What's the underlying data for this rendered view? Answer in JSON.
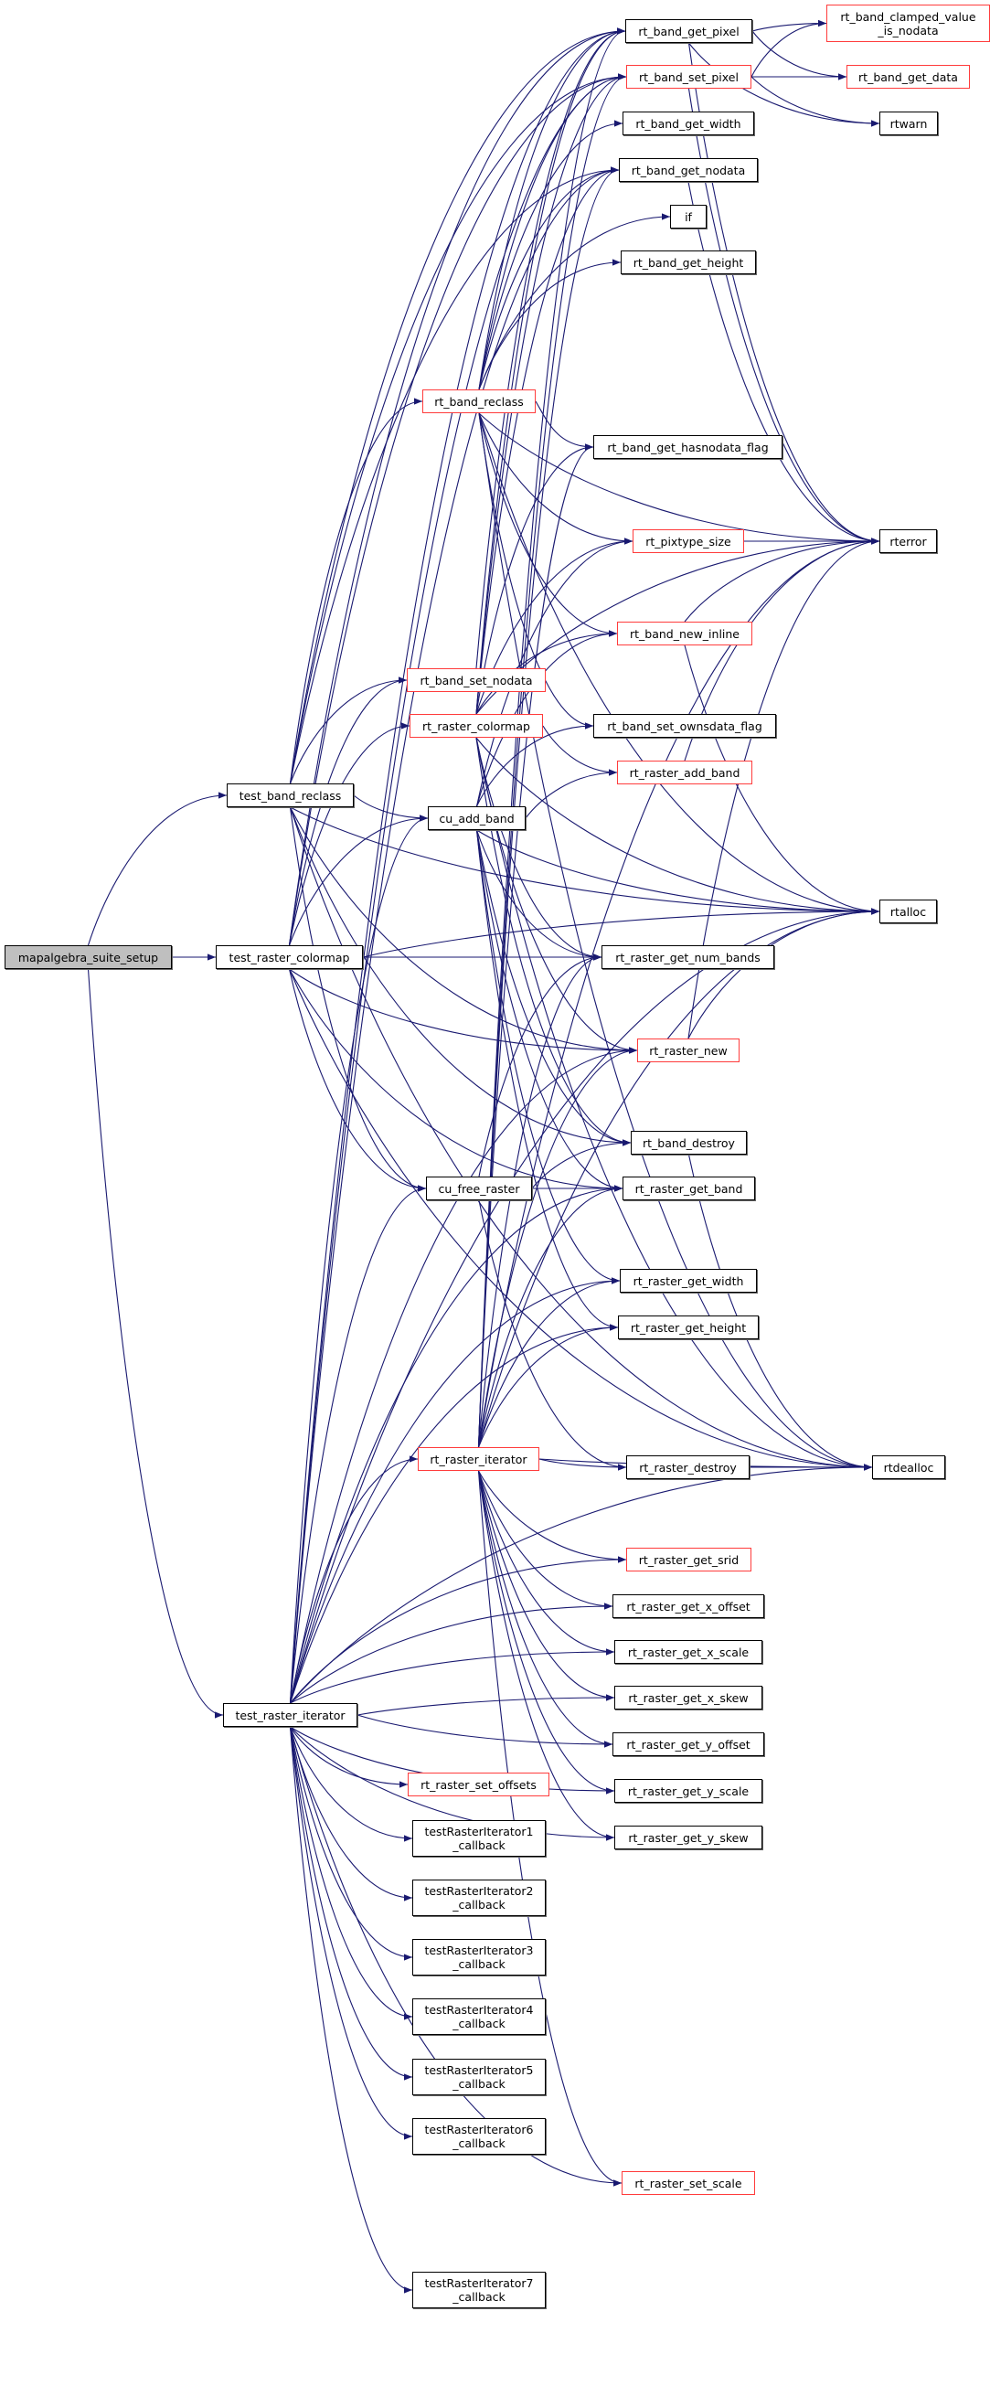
{
  "colors": {
    "edge": "#191970",
    "incomplete_border": "#ff3c3c",
    "normal_border": "#000000",
    "root_fill": "#bfbfbf"
  },
  "nodes": [
    {
      "id": "mapalgebra_suite_setup",
      "lines": [
        "mapalgebra_suite_setup"
      ],
      "style": "root"
    },
    {
      "id": "test_band_reclass",
      "lines": [
        "test_band_reclass"
      ],
      "style": "normal"
    },
    {
      "id": "test_raster_colormap",
      "lines": [
        "test_raster_colormap"
      ],
      "style": "normal"
    },
    {
      "id": "test_raster_iterator",
      "lines": [
        "test_raster_iterator"
      ],
      "style": "normal"
    },
    {
      "id": "rt_band_get_pixel",
      "lines": [
        "rt_band_get_pixel"
      ],
      "style": "normal"
    },
    {
      "id": "rt_band_clamped_value_is_nodata",
      "lines": [
        "rt_band_clamped_value",
        "_is_nodata"
      ],
      "style": "red"
    },
    {
      "id": "rt_band_set_pixel",
      "lines": [
        "rt_band_set_pixel"
      ],
      "style": "red"
    },
    {
      "id": "rt_band_get_data",
      "lines": [
        "rt_band_get_data"
      ],
      "style": "red"
    },
    {
      "id": "rt_band_get_width",
      "lines": [
        "rt_band_get_width"
      ],
      "style": "normal"
    },
    {
      "id": "rtwarn",
      "lines": [
        "rtwarn"
      ],
      "style": "normal"
    },
    {
      "id": "rt_band_get_nodata",
      "lines": [
        "rt_band_get_nodata"
      ],
      "style": "normal"
    },
    {
      "id": "if",
      "lines": [
        "if"
      ],
      "style": "normal"
    },
    {
      "id": "rt_band_get_height",
      "lines": [
        "rt_band_get_height"
      ],
      "style": "normal"
    },
    {
      "id": "rt_band_reclass",
      "lines": [
        "rt_band_reclass"
      ],
      "style": "red"
    },
    {
      "id": "rt_band_get_hasnodata_flag",
      "lines": [
        "rt_band_get_hasnodata_flag"
      ],
      "style": "normal"
    },
    {
      "id": "rt_pixtype_size",
      "lines": [
        "rt_pixtype_size"
      ],
      "style": "red"
    },
    {
      "id": "rterror",
      "lines": [
        "rterror"
      ],
      "style": "normal"
    },
    {
      "id": "rt_band_new_inline",
      "lines": [
        "rt_band_new_inline"
      ],
      "style": "red"
    },
    {
      "id": "rt_band_set_nodata",
      "lines": [
        "rt_band_set_nodata"
      ],
      "style": "red"
    },
    {
      "id": "rt_raster_colormap",
      "lines": [
        "rt_raster_colormap"
      ],
      "style": "red"
    },
    {
      "id": "rt_band_set_ownsdata_flag",
      "lines": [
        "rt_band_set_ownsdata_flag"
      ],
      "style": "normal"
    },
    {
      "id": "rt_raster_add_band",
      "lines": [
        "rt_raster_add_band"
      ],
      "style": "red"
    },
    {
      "id": "cu_add_band",
      "lines": [
        "cu_add_band"
      ],
      "style": "normal"
    },
    {
      "id": "rtalloc",
      "lines": [
        "rtalloc"
      ],
      "style": "normal"
    },
    {
      "id": "rt_raster_get_num_bands",
      "lines": [
        "rt_raster_get_num_bands"
      ],
      "style": "normal"
    },
    {
      "id": "rt_raster_new",
      "lines": [
        "rt_raster_new"
      ],
      "style": "red"
    },
    {
      "id": "rt_band_destroy",
      "lines": [
        "rt_band_destroy"
      ],
      "style": "normal"
    },
    {
      "id": "cu_free_raster",
      "lines": [
        "cu_free_raster"
      ],
      "style": "normal"
    },
    {
      "id": "rt_raster_get_band",
      "lines": [
        "rt_raster_get_band"
      ],
      "style": "normal"
    },
    {
      "id": "rt_raster_get_width",
      "lines": [
        "rt_raster_get_width"
      ],
      "style": "normal"
    },
    {
      "id": "rt_raster_get_height",
      "lines": [
        "rt_raster_get_height"
      ],
      "style": "normal"
    },
    {
      "id": "rt_raster_iterator",
      "lines": [
        "rt_raster_iterator"
      ],
      "style": "red"
    },
    {
      "id": "rt_raster_destroy",
      "lines": [
        "rt_raster_destroy"
      ],
      "style": "normal"
    },
    {
      "id": "rtdealloc",
      "lines": [
        "rtdealloc"
      ],
      "style": "normal"
    },
    {
      "id": "rt_raster_get_srid",
      "lines": [
        "rt_raster_get_srid"
      ],
      "style": "red"
    },
    {
      "id": "rt_raster_get_x_offset",
      "lines": [
        "rt_raster_get_x_offset"
      ],
      "style": "normal"
    },
    {
      "id": "rt_raster_get_x_scale",
      "lines": [
        "rt_raster_get_x_scale"
      ],
      "style": "normal"
    },
    {
      "id": "rt_raster_get_x_skew",
      "lines": [
        "rt_raster_get_x_skew"
      ],
      "style": "normal"
    },
    {
      "id": "rt_raster_get_y_offset",
      "lines": [
        "rt_raster_get_y_offset"
      ],
      "style": "normal"
    },
    {
      "id": "rt_raster_set_offsets",
      "lines": [
        "rt_raster_set_offsets"
      ],
      "style": "red"
    },
    {
      "id": "rt_raster_get_y_scale",
      "lines": [
        "rt_raster_get_y_scale"
      ],
      "style": "normal"
    },
    {
      "id": "rt_raster_get_y_skew",
      "lines": [
        "rt_raster_get_y_skew"
      ],
      "style": "normal"
    },
    {
      "id": "testRasterIterator1_callback",
      "lines": [
        "testRasterIterator1",
        "_callback"
      ],
      "style": "normal"
    },
    {
      "id": "testRasterIterator2_callback",
      "lines": [
        "testRasterIterator2",
        "_callback"
      ],
      "style": "normal"
    },
    {
      "id": "testRasterIterator3_callback",
      "lines": [
        "testRasterIterator3",
        "_callback"
      ],
      "style": "normal"
    },
    {
      "id": "testRasterIterator4_callback",
      "lines": [
        "testRasterIterator4",
        "_callback"
      ],
      "style": "normal"
    },
    {
      "id": "testRasterIterator5_callback",
      "lines": [
        "testRasterIterator5",
        "_callback"
      ],
      "style": "normal"
    },
    {
      "id": "testRasterIterator6_callback",
      "lines": [
        "testRasterIterator6",
        "_callback"
      ],
      "style": "normal"
    },
    {
      "id": "rt_raster_set_scale",
      "lines": [
        "rt_raster_set_scale"
      ],
      "style": "red"
    },
    {
      "id": "testRasterIterator7_callback",
      "lines": [
        "testRasterIterator7",
        "_callback"
      ],
      "style": "normal"
    }
  ],
  "edges": [
    [
      "mapalgebra_suite_setup",
      "test_band_reclass"
    ],
    [
      "mapalgebra_suite_setup",
      "test_raster_colormap"
    ],
    [
      "mapalgebra_suite_setup",
      "test_raster_iterator"
    ],
    [
      "test_band_reclass",
      "rt_band_get_pixel"
    ],
    [
      "test_band_reclass",
      "rt_band_set_pixel"
    ],
    [
      "test_band_reclass",
      "rt_band_get_nodata"
    ],
    [
      "test_band_reclass",
      "rt_band_reclass"
    ],
    [
      "test_band_reclass",
      "rt_band_set_nodata"
    ],
    [
      "test_band_reclass",
      "cu_add_band"
    ],
    [
      "test_band_reclass",
      "rt_raster_new"
    ],
    [
      "test_band_reclass",
      "rt_band_destroy"
    ],
    [
      "test_band_reclass",
      "cu_free_raster"
    ],
    [
      "test_band_reclass",
      "rtalloc"
    ],
    [
      "test_band_reclass",
      "rtdealloc"
    ],
    [
      "test_raster_colormap",
      "rt_band_get_pixel"
    ],
    [
      "test_raster_colormap",
      "rt_band_set_pixel"
    ],
    [
      "test_raster_colormap",
      "rt_band_set_nodata"
    ],
    [
      "test_raster_colormap",
      "rt_raster_colormap"
    ],
    [
      "test_raster_colormap",
      "cu_add_band"
    ],
    [
      "test_raster_colormap",
      "rt_raster_get_num_bands"
    ],
    [
      "test_raster_colormap",
      "rt_raster_new"
    ],
    [
      "test_raster_colormap",
      "rtalloc"
    ],
    [
      "test_raster_colormap",
      "cu_free_raster"
    ],
    [
      "test_raster_colormap",
      "rt_raster_get_band"
    ],
    [
      "test_raster_colormap",
      "rtdealloc"
    ],
    [
      "test_raster_iterator",
      "rt_band_get_pixel"
    ],
    [
      "test_raster_iterator",
      "rt_band_set_pixel"
    ],
    [
      "test_raster_iterator",
      "rt_band_get_nodata"
    ],
    [
      "test_raster_iterator",
      "cu_add_band"
    ],
    [
      "test_raster_iterator",
      "rt_raster_new"
    ],
    [
      "test_raster_iterator",
      "cu_free_raster"
    ],
    [
      "test_raster_iterator",
      "rt_raster_get_band"
    ],
    [
      "test_raster_iterator",
      "rt_raster_get_width"
    ],
    [
      "test_raster_iterator",
      "rt_raster_get_height"
    ],
    [
      "test_raster_iterator",
      "rtalloc"
    ],
    [
      "test_raster_iterator",
      "rt_raster_iterator"
    ],
    [
      "test_raster_iterator",
      "rt_raster_get_srid"
    ],
    [
      "test_raster_iterator",
      "rt_raster_get_x_offset"
    ],
    [
      "test_raster_iterator",
      "rt_raster_get_x_scale"
    ],
    [
      "test_raster_iterator",
      "rt_raster_get_x_skew"
    ],
    [
      "test_raster_iterator",
      "rt_raster_get_y_offset"
    ],
    [
      "test_raster_iterator",
      "rt_raster_get_y_scale"
    ],
    [
      "test_raster_iterator",
      "rt_raster_get_y_skew"
    ],
    [
      "test_raster_iterator",
      "rt_raster_set_offsets"
    ],
    [
      "test_raster_iterator",
      "rt_raster_set_scale"
    ],
    [
      "test_raster_iterator",
      "rtdealloc"
    ],
    [
      "test_raster_iterator",
      "testRasterIterator1_callback"
    ],
    [
      "test_raster_iterator",
      "testRasterIterator2_callback"
    ],
    [
      "test_raster_iterator",
      "testRasterIterator3_callback"
    ],
    [
      "test_raster_iterator",
      "testRasterIterator4_callback"
    ],
    [
      "test_raster_iterator",
      "testRasterIterator5_callback"
    ],
    [
      "test_raster_iterator",
      "testRasterIterator6_callback"
    ],
    [
      "test_raster_iterator",
      "testRasterIterator7_callback"
    ],
    [
      "rt_band_get_pixel",
      "rt_band_clamped_value_is_nodata"
    ],
    [
      "rt_band_get_pixel",
      "rt_band_get_data"
    ],
    [
      "rt_band_get_pixel",
      "rtwarn"
    ],
    [
      "rt_band_get_pixel",
      "rterror"
    ],
    [
      "rt_band_set_pixel",
      "rt_band_clamped_value_is_nodata"
    ],
    [
      "rt_band_set_pixel",
      "rt_band_get_data"
    ],
    [
      "rt_band_set_pixel",
      "rtwarn"
    ],
    [
      "rt_band_set_pixel",
      "rterror"
    ],
    [
      "rt_band_get_nodata",
      "rterror"
    ],
    [
      "rt_band_reclass",
      "rt_band_get_pixel"
    ],
    [
      "rt_band_reclass",
      "rt_band_set_pixel"
    ],
    [
      "rt_band_reclass",
      "rt_band_get_width"
    ],
    [
      "rt_band_reclass",
      "rt_band_get_nodata"
    ],
    [
      "rt_band_reclass",
      "if"
    ],
    [
      "rt_band_reclass",
      "rt_band_get_height"
    ],
    [
      "rt_band_reclass",
      "rt_band_get_hasnodata_flag"
    ],
    [
      "rt_band_reclass",
      "rt_pixtype_size"
    ],
    [
      "rt_band_reclass",
      "rterror"
    ],
    [
      "rt_band_reclass",
      "rt_band_new_inline"
    ],
    [
      "rt_band_reclass",
      "rt_band_set_ownsdata_flag"
    ],
    [
      "rt_band_reclass",
      "rtalloc"
    ],
    [
      "rt_band_reclass",
      "rtdealloc"
    ],
    [
      "rt_band_set_nodata",
      "rt_band_get_pixel"
    ],
    [
      "rt_pixtype_size",
      "rterror"
    ],
    [
      "rt_band_new_inline",
      "rterror"
    ],
    [
      "rt_band_new_inline",
      "rtalloc"
    ],
    [
      "rt_raster_colormap",
      "rt_band_get_pixel"
    ],
    [
      "rt_raster_colormap",
      "rt_band_set_pixel"
    ],
    [
      "rt_raster_colormap",
      "rt_band_get_nodata"
    ],
    [
      "rt_raster_colormap",
      "rt_band_get_hasnodata_flag"
    ],
    [
      "rt_raster_colormap",
      "rt_pixtype_size"
    ],
    [
      "rt_raster_colormap",
      "rt_band_new_inline"
    ],
    [
      "rt_raster_colormap",
      "rt_raster_add_band"
    ],
    [
      "rt_raster_colormap",
      "rt_raster_get_num_bands"
    ],
    [
      "rt_raster_colormap",
      "rt_raster_new"
    ],
    [
      "rt_raster_colormap",
      "rt_band_destroy"
    ],
    [
      "rt_raster_colormap",
      "rterror"
    ],
    [
      "rt_raster_colormap",
      "rtalloc"
    ],
    [
      "rt_raster_colormap",
      "rtdealloc"
    ],
    [
      "rt_raster_add_band",
      "rterror"
    ],
    [
      "cu_add_band",
      "rt_pixtype_size"
    ],
    [
      "cu_add_band",
      "rt_band_new_inline"
    ],
    [
      "cu_add_band",
      "rt_band_set_ownsdata_flag"
    ],
    [
      "cu_add_band",
      "rt_raster_add_band"
    ],
    [
      "cu_add_band",
      "rt_raster_get_num_bands"
    ],
    [
      "cu_add_band",
      "rt_raster_get_band"
    ],
    [
      "cu_add_band",
      "rt_raster_get_width"
    ],
    [
      "cu_add_band",
      "rt_raster_get_height"
    ],
    [
      "cu_add_band",
      "rt_band_destroy"
    ],
    [
      "cu_add_band",
      "rtalloc"
    ],
    [
      "rt_raster_new",
      "rtalloc"
    ],
    [
      "rt_raster_new",
      "rterror"
    ],
    [
      "cu_free_raster",
      "rt_raster_get_num_bands"
    ],
    [
      "cu_free_raster",
      "rt_raster_get_band"
    ],
    [
      "cu_free_raster",
      "rt_band_destroy"
    ],
    [
      "cu_free_raster",
      "rt_raster_destroy"
    ],
    [
      "rt_band_destroy",
      "rtdealloc"
    ],
    [
      "rt_raster_iterator",
      "rt_band_get_pixel"
    ],
    [
      "rt_raster_iterator",
      "rt_band_set_pixel"
    ],
    [
      "rt_raster_iterator",
      "rt_band_get_nodata"
    ],
    [
      "rt_raster_iterator",
      "rt_band_get_hasnodata_flag"
    ],
    [
      "rt_raster_iterator",
      "rt_raster_get_num_bands"
    ],
    [
      "rt_raster_iterator",
      "rt_raster_new"
    ],
    [
      "rt_raster_iterator",
      "rt_raster_get_band"
    ],
    [
      "rt_raster_iterator",
      "rt_raster_get_width"
    ],
    [
      "rt_raster_iterator",
      "rt_raster_get_height"
    ],
    [
      "rt_raster_iterator",
      "rt_raster_destroy"
    ],
    [
      "rt_raster_iterator",
      "rtdealloc"
    ],
    [
      "rt_raster_iterator",
      "rtalloc"
    ],
    [
      "rt_raster_iterator",
      "rterror"
    ],
    [
      "rt_raster_iterator",
      "rt_raster_get_srid"
    ],
    [
      "rt_raster_iterator",
      "rt_raster_get_x_offset"
    ],
    [
      "rt_raster_iterator",
      "rt_raster_get_x_scale"
    ],
    [
      "rt_raster_iterator",
      "rt_raster_get_x_skew"
    ],
    [
      "rt_raster_iterator",
      "rt_raster_get_y_offset"
    ],
    [
      "rt_raster_iterator",
      "rt_raster_get_y_scale"
    ],
    [
      "rt_raster_iterator",
      "rt_raster_get_y_skew"
    ],
    [
      "rt_raster_iterator",
      "rt_raster_set_scale"
    ],
    [
      "rt_raster_destroy",
      "rtdealloc"
    ]
  ]
}
